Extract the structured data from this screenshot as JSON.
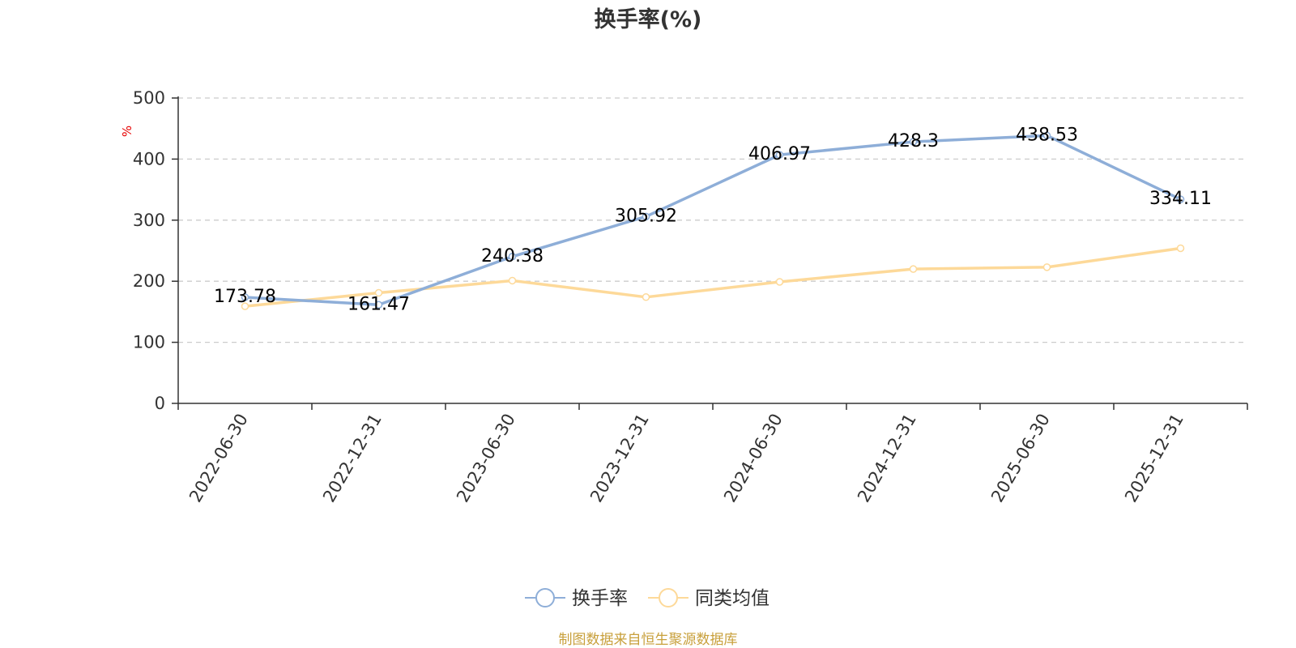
{
  "source_note": "制图数据来自恒生聚源数据库",
  "colors": {
    "series1": "#8eaed8",
    "series2": "#fdd999",
    "unit": "#e60000",
    "source": "#c8a03c",
    "axis": "#333333",
    "grid": "#cccccc"
  },
  "chart_data": {
    "type": "line",
    "title": "换手率(%)",
    "ylabel": "%",
    "xlabel": "",
    "ylim": [
      0,
      500
    ],
    "yticks": [
      0,
      100,
      200,
      300,
      400,
      500
    ],
    "grid": "horizontal-dashed",
    "legend_position": "bottom-center",
    "categories": [
      "2022-06-30",
      "2022-12-31",
      "2023-06-30",
      "2023-12-31",
      "2024-06-30",
      "2024-12-31",
      "2025-06-30",
      "2025-12-31"
    ],
    "series": [
      {
        "name": "换手率",
        "values": [
          173.78,
          161.47,
          240.38,
          305.92,
          406.97,
          428.3,
          438.53,
          334.11
        ],
        "data_labels": [
          "173.78",
          "161.47",
          "240.38",
          "305.92",
          "406.97",
          "428.3",
          "438.53",
          "334.11"
        ],
        "color_key": "series1"
      },
      {
        "name": "同类均值",
        "values": [
          159,
          181,
          201,
          174,
          199,
          220,
          223,
          254
        ],
        "color_key": "series2"
      }
    ]
  }
}
